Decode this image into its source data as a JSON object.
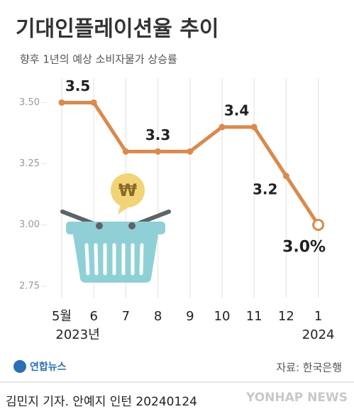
{
  "chart_data": {
    "type": "line",
    "title": "기대인플레이션율 추이",
    "subtitle": "향후 1년의 예상 소비자물가 상승률",
    "categories": [
      "5월",
      "6",
      "7",
      "8",
      "9",
      "10",
      "11",
      "12",
      "1"
    ],
    "x_sublabels": [
      "2023년",
      null,
      null,
      null,
      null,
      null,
      null,
      null,
      "2024"
    ],
    "values": [
      3.5,
      3.5,
      3.3,
      3.3,
      3.3,
      3.4,
      3.4,
      3.2,
      3.0
    ],
    "value_labels": [
      null,
      "3.5",
      null,
      "3.3",
      null,
      "3.4",
      null,
      "3.2",
      "3.0%"
    ],
    "color": "#d98a4c",
    "ylim": [
      2.7,
      3.6
    ],
    "yticks": [
      2.75,
      {
        "value": 3,
        "label": "3.00"
      },
      3.25,
      {
        "value": 3.5,
        "label": "3.50"
      }
    ],
    "logo": "연합뉴스",
    "source": "자료: 한국은행",
    "credit": "김민지 기자. 안예지 인턴  20240124",
    "watermark": "YONHAP NEWS"
  }
}
